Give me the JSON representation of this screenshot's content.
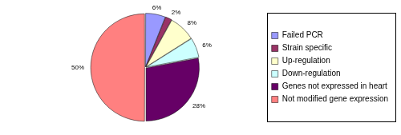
{
  "chart_data": {
    "type": "pie",
    "categories": [
      "Failed PCR",
      "Strain specific",
      "Up-regulation",
      "Down-regulation",
      "Genes not expressed in heart",
      "Not modified gene expression"
    ],
    "values": [
      6,
      2,
      8,
      6,
      28,
      50
    ],
    "value_labels": [
      "6%",
      "2%",
      "8%",
      "6%",
      "28%",
      "50%"
    ],
    "colors": [
      "#9999ff",
      "#993366",
      "#ffffcc",
      "#ccffff",
      "#660066",
      "#ff8080"
    ],
    "data_labels": true,
    "legend": "right"
  }
}
